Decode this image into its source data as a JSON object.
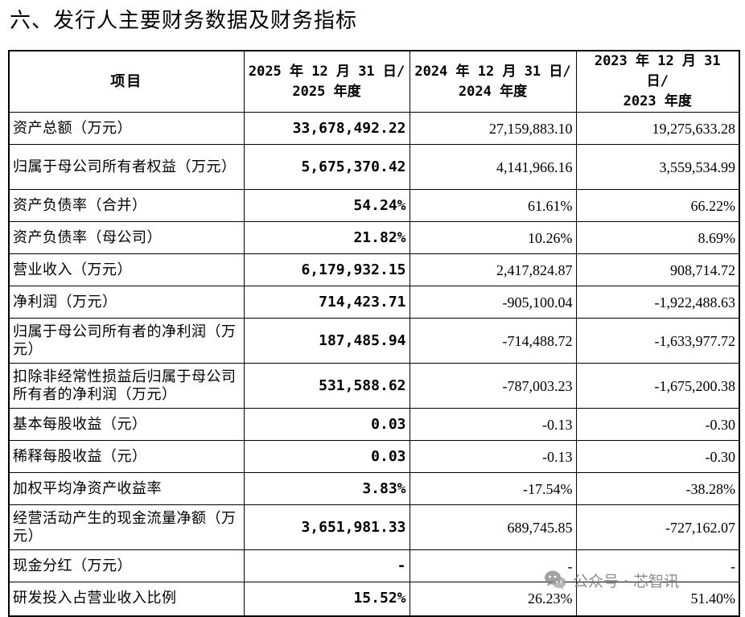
{
  "heading": "六、发行人主要财务数据及财务指标",
  "table": {
    "header": {
      "item": "项目",
      "col1_line1": "2025 年 12 月 31 日/",
      "col1_line2": "2025 年度",
      "col2_line1": "2024 年 12 月 31 日/",
      "col2_line2": "2024 年度",
      "col3_line1": "2023 年 12 月 31 日/",
      "col3_line2": "2023 年度"
    },
    "rows": [
      {
        "label": "资产总额（万元）",
        "v2025": "33,678,492.22",
        "v2024": "27,159,883.10",
        "v2023": "19,275,633.28"
      },
      {
        "label": "归属于母公司所有者权益（万元）",
        "v2025": "5,675,370.42",
        "v2024": "4,141,966.16",
        "v2023": "3,559,534.99"
      },
      {
        "label": "资产负债率（合并）",
        "v2025": "54.24%",
        "v2024": "61.61%",
        "v2023": "66.22%"
      },
      {
        "label": "资产负债率（母公司）",
        "v2025": "21.82%",
        "v2024": "10.26%",
        "v2023": "8.69%"
      },
      {
        "label": "营业收入（万元）",
        "v2025": "6,179,932.15",
        "v2024": "2,417,824.87",
        "v2023": "908,714.72"
      },
      {
        "label": "净利润（万元）",
        "v2025": "714,423.71",
        "v2024": "-905,100.04",
        "v2023": "-1,922,488.63"
      },
      {
        "label": "归属于母公司所有者的净利润（万元）",
        "v2025": "187,485.94",
        "v2024": "-714,488.72",
        "v2023": "-1,633,977.72"
      },
      {
        "label": "扣除非经常性损益后归属于母公司所有者的净利润（万元）",
        "v2025": "531,588.62",
        "v2024": "-787,003.23",
        "v2023": "-1,675,200.38"
      },
      {
        "label": "基本每股收益（元）",
        "v2025": "0.03",
        "v2024": "-0.13",
        "v2023": "-0.30"
      },
      {
        "label": "稀释每股收益（元）",
        "v2025": "0.03",
        "v2024": "-0.13",
        "v2023": "-0.30"
      },
      {
        "label": "加权平均净资产收益率",
        "v2025": "3.83%",
        "v2024": "-17.54%",
        "v2023": "-38.28%"
      },
      {
        "label": "经营活动产生的现金流量净额（万元）",
        "v2025": "3,651,981.33",
        "v2024": "689,745.85",
        "v2023": "-727,162.07"
      },
      {
        "label": "现金分红（万元）",
        "v2025": "-",
        "v2024": "-",
        "v2023": "-"
      },
      {
        "label": "研发投入占营业收入比例",
        "v2025": "15.52%",
        "v2024": "26.23%",
        "v2023": "51.40%"
      }
    ]
  },
  "watermark": {
    "text": "公众号 · 芯智讯",
    "icon": "wechat-icon"
  }
}
